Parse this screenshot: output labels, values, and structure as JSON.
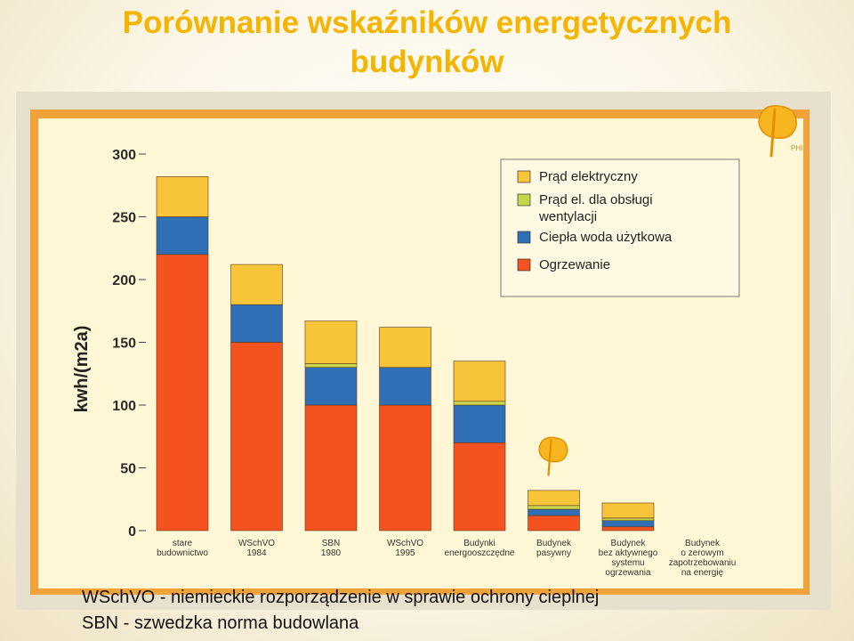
{
  "slide": {
    "title_line1": "Porównanie wskaźników energetycznych",
    "title_line2": "budynków",
    "footnotes": [
      "WSchVO - niemieckie rozporządzenie w sprawie ochrony cieplnej",
      "SBN - szwedzka norma budowlana"
    ],
    "logo_text": "PHI"
  },
  "colors": {
    "ogrzewanie": "#f4521e",
    "cieplaWoda": "#2f6fb5",
    "wentylacja": "#c8d44a",
    "pradElektryczny": "#f8c43a",
    "plotBackground": "#fff7d6",
    "frame": "#f1a33a"
  },
  "chart_data": {
    "type": "bar",
    "stacked": true,
    "ylabel": "kwh/(m2a)",
    "ylim": [
      0,
      300
    ],
    "yticks": [
      0,
      50,
      100,
      150,
      200,
      250,
      300
    ],
    "categories": [
      "stare budownictwo",
      "WSchVO 1984",
      "SBN 1980",
      "WSchVO 1995",
      "Budynki energooszczędne",
      "Budynek pasywny",
      "Budynek bez aktywnego systemu ogrzewania",
      "Budynek o zerowym zapotrzebowaniu na energię"
    ],
    "category_lines": [
      [
        "stare",
        "budownictwo"
      ],
      [
        "WSchVO",
        "1984"
      ],
      [
        "SBN",
        "1980"
      ],
      [
        "WSchVO",
        "1995"
      ],
      [
        "Budynki",
        "energooszczędne"
      ],
      [
        "Budynek",
        "pasywny"
      ],
      [
        "Budynek",
        "bez aktywnego",
        "systemu",
        "ogrzewania"
      ],
      [
        "Budynek",
        "o zerowym",
        "zapotrzebowaniu",
        "na energię"
      ]
    ],
    "series": [
      {
        "name": "Ogrzewanie",
        "values": [
          220,
          150,
          100,
          100,
          70,
          12,
          3,
          0
        ]
      },
      {
        "name": "Ciepła woda użytkowa",
        "values": [
          30,
          30,
          30,
          30,
          30,
          5,
          5,
          0
        ]
      },
      {
        "name": "Prąd el. dla obsługi wentylacji",
        "values": [
          0,
          0,
          3,
          0,
          3,
          3,
          2,
          0
        ]
      },
      {
        "name": "Prąd elektryczny",
        "values": [
          32,
          32,
          34,
          32,
          32,
          12,
          12,
          0
        ]
      }
    ],
    "legend": {
      "position": "top-right",
      "entries": [
        {
          "label": "Prąd elektryczny",
          "color": "#f8c43a"
        },
        {
          "label": "Prąd el. dla obsługi",
          "label2": "wentylacji",
          "color": "#c8d44a"
        },
        {
          "label": "Ciepła woda użytkowa",
          "color": "#2f6fb5"
        },
        {
          "label": "Ogrzewanie",
          "color": "#f4521e"
        }
      ]
    },
    "grid": false
  }
}
